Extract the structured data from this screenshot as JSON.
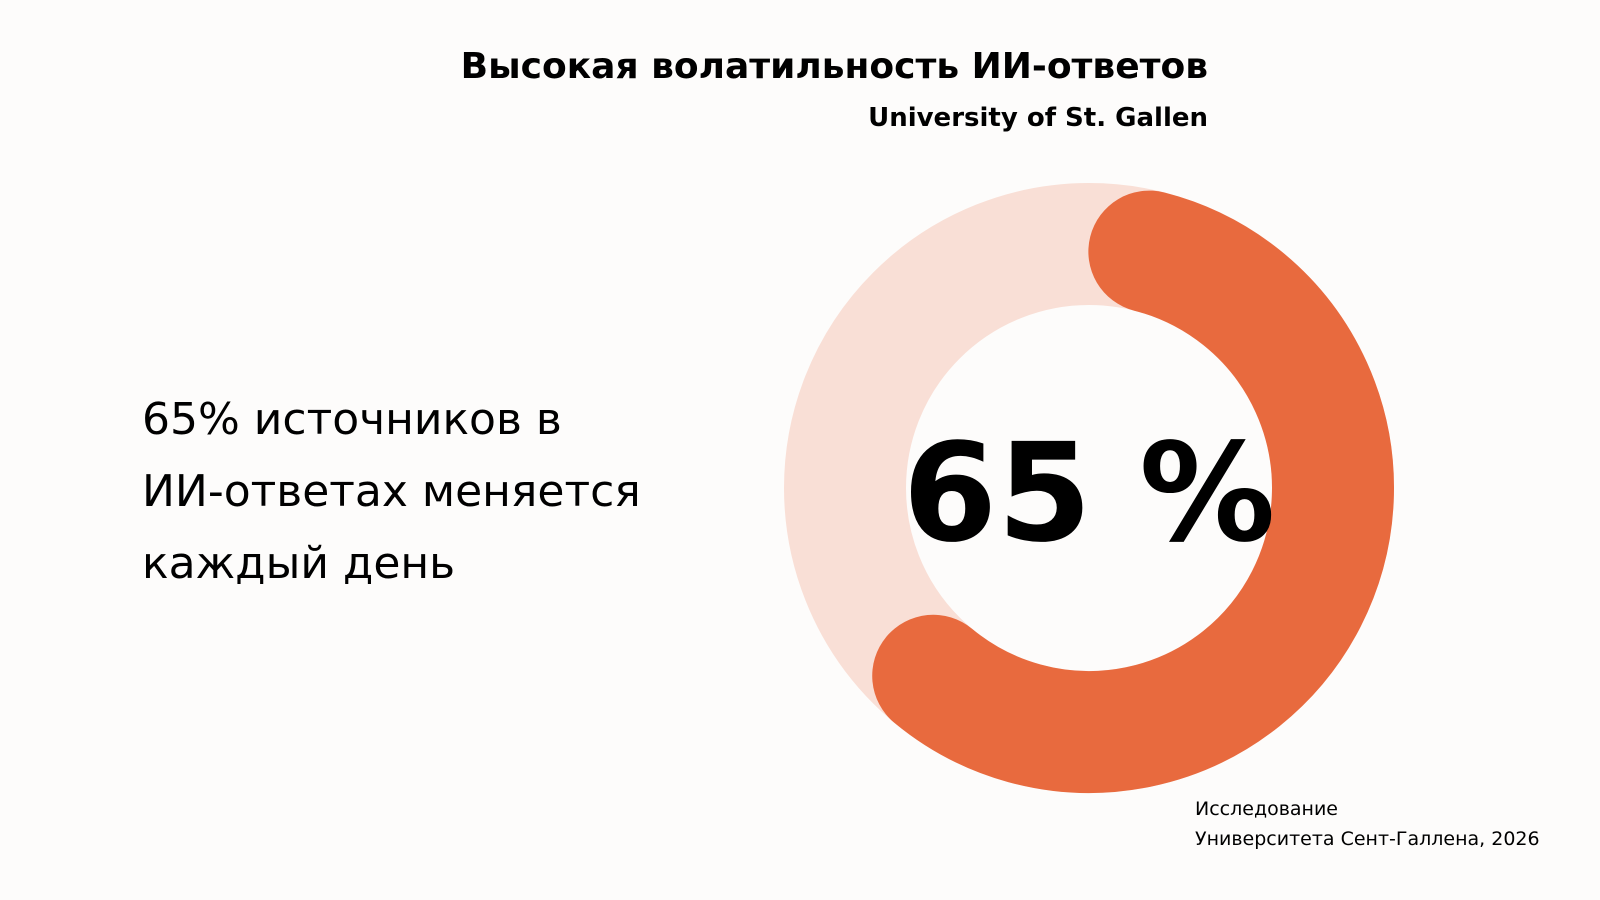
{
  "chart_data": {
    "type": "donut",
    "title": "Высокая волатильность ИИ-ответов",
    "subtitle": "University of St. Gallen",
    "annotation": [
      "65% источников в",
      "ИИ-ответах меняется",
      "каждый день"
    ],
    "values": [
      65
    ],
    "value_labels": [
      "65 %"
    ],
    "ylim": [
      0,
      100
    ],
    "color": "#e86a3e",
    "track_color": "#f9dfd6",
    "source": [
      "Исследование",
      "Университета Сент-Галлена, 2026"
    ]
  }
}
